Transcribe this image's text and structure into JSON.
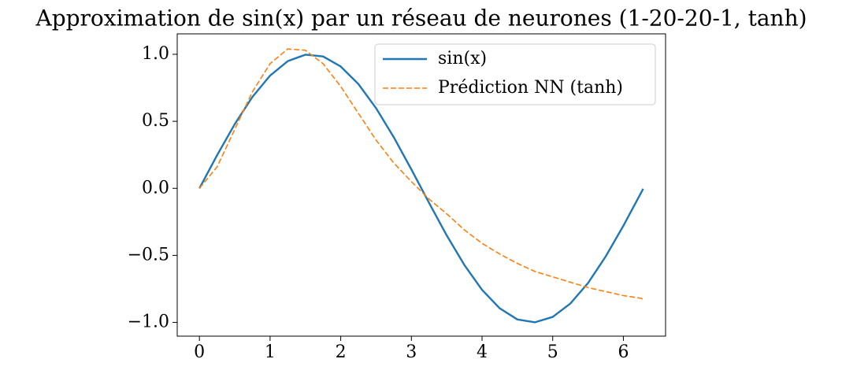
{
  "chart_data": {
    "type": "line",
    "title": "Approximation de sin(x) par un réseau de neurones (1-20-20-1, tanh)",
    "x": [
      0,
      0.25,
      0.5,
      0.75,
      1.0,
      1.25,
      1.5,
      1.75,
      2.0,
      2.25,
      2.5,
      2.75,
      3.0,
      3.25,
      3.5,
      3.75,
      4.0,
      4.25,
      4.5,
      4.75,
      5.0,
      5.25,
      5.5,
      5.75,
      6.0,
      6.25,
      6.28
    ],
    "series": [
      {
        "name": "sin(x)",
        "color": "#1f77b4",
        "linestyle": "solid",
        "values": [
          0,
          0.247,
          0.479,
          0.682,
          0.841,
          0.949,
          0.997,
          0.984,
          0.909,
          0.778,
          0.598,
          0.382,
          0.141,
          -0.108,
          -0.351,
          -0.572,
          -0.757,
          -0.895,
          -0.978,
          -0.999,
          -0.959,
          -0.859,
          -0.706,
          -0.508,
          -0.279,
          -0.033,
          -0.003
        ]
      },
      {
        "name": "Prédiction NN (tanh)",
        "color": "#ff7f0e",
        "linestyle": "dashed",
        "values": [
          0,
          0.16,
          0.44,
          0.72,
          0.93,
          1.04,
          1.03,
          0.93,
          0.76,
          0.56,
          0.36,
          0.19,
          0.05,
          -0.08,
          -0.19,
          -0.31,
          -0.41,
          -0.49,
          -0.56,
          -0.62,
          -0.66,
          -0.7,
          -0.74,
          -0.77,
          -0.8,
          -0.82,
          -0.83
        ]
      }
    ],
    "xlim": [
      -0.314,
      6.597
    ],
    "ylim": [
      -1.1025,
      1.1525
    ],
    "xticks": [
      0,
      1,
      2,
      3,
      4,
      5,
      6
    ],
    "yticks": [
      {
        "value": -1.0,
        "label": "−1.0"
      },
      {
        "value": -0.5,
        "label": "−0.5"
      },
      {
        "value": 0.0,
        "label": "0.0"
      },
      {
        "value": 0.5,
        "label": "0.5"
      },
      {
        "value": 1.0,
        "label": "1.0"
      }
    ],
    "grid": false,
    "legend": "upper right"
  }
}
